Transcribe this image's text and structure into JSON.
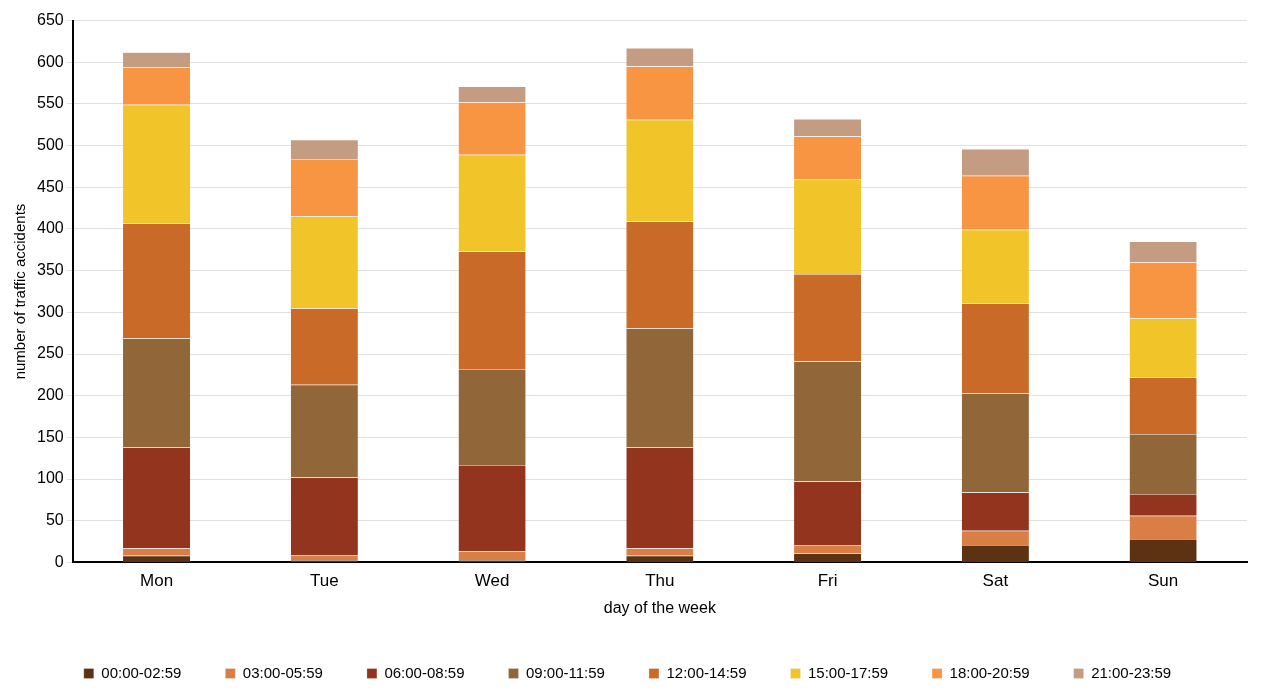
{
  "chart_data": {
    "type": "bar",
    "stacked": true,
    "xlabel": "day of the week",
    "ylabel": "number of traffic accidents",
    "categories": [
      "Mon",
      "Tue",
      "Wed",
      "Thu",
      "Fri",
      "Sat",
      "Sun"
    ],
    "series": [
      {
        "name": "00:00-02:59",
        "color": "#5c3212",
        "values": [
          8,
          3,
          3,
          8,
          11,
          21,
          28
        ]
      },
      {
        "name": "03:00-05:59",
        "color": "#d97f45",
        "values": [
          9,
          6,
          10,
          9,
          10,
          17,
          28
        ]
      },
      {
        "name": "06:00-08:59",
        "color": "#93341f",
        "values": [
          121,
          93,
          104,
          121,
          76,
          46,
          26
        ]
      },
      {
        "name": "09:00-11:59",
        "color": "#916638",
        "values": [
          131,
          111,
          115,
          143,
          144,
          119,
          72
        ]
      },
      {
        "name": "12:00-14:59",
        "color": "#c96a28",
        "values": [
          138,
          92,
          141,
          128,
          105,
          108,
          68
        ]
      },
      {
        "name": "15:00-17:59",
        "color": "#f1c42a",
        "values": [
          142,
          110,
          116,
          122,
          114,
          88,
          71
        ]
      },
      {
        "name": "18:00-20:59",
        "color": "#f79542",
        "values": [
          45,
          69,
          63,
          64,
          51,
          65,
          67
        ]
      },
      {
        "name": "21:00-23:59",
        "color": "#c49c82",
        "values": [
          18,
          23,
          19,
          22,
          21,
          32,
          25
        ]
      }
    ],
    "ylim": [
      0,
      650
    ],
    "yticks": [
      0,
      50,
      100,
      150,
      200,
      250,
      300,
      350,
      400,
      450,
      500,
      550,
      600,
      650
    ],
    "grid": "y",
    "legend": "bottom"
  }
}
